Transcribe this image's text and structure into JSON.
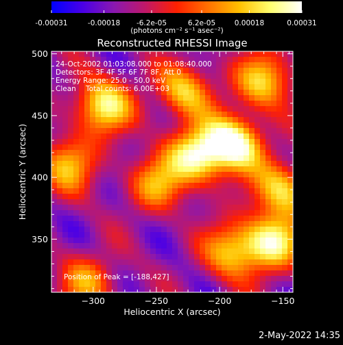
{
  "colorbar": {
    "tick_labels": [
      "-0.00031",
      "-0.00018",
      "-6.2e-05",
      "6.2e-05",
      "0.00018",
      "0.00031"
    ],
    "tick_values": [
      -0.00031,
      -0.00018,
      -6.2e-05,
      6.2e-05,
      0.00018,
      0.00031
    ],
    "range": [
      -0.00031,
      0.00031
    ],
    "units_label": "(photons cm⁻² s⁻¹ asec⁻²)",
    "colors": [
      "#0000ff",
      "#4a00e6",
      "#8a18b0",
      "#c01868",
      "#ff2000",
      "#ff7000",
      "#ffc000",
      "#ffff70",
      "#ffffff"
    ]
  },
  "chart_data": {
    "type": "heatmap",
    "title": "Reconstructed RHESSI Image",
    "xlabel": "Heliocentric X (arcsec)",
    "ylabel": "Heliocentric Y (arcsec)",
    "xlim": [
      -333,
      -142
    ],
    "ylim": [
      307,
      502
    ],
    "x_ticks": [
      -300,
      -250,
      -200,
      -150
    ],
    "y_ticks": [
      350,
      400,
      450,
      500
    ],
    "x_tick_labels": [
      "−300",
      "−250",
      "−200",
      "−150"
    ],
    "y_tick_labels": [
      "350",
      "400",
      "450",
      "500"
    ],
    "annotations": [
      "24-Oct-2002 01:03:08.000 to 01:08:40.000",
      "Detectors: 3F 4F 5F 6F 7F 8F, Att 0",
      "Energy Range: 25.0 - 50.0 keV",
      "Clean",
      "Total counts: 6.00E+03",
      "Position of Peak = [-188,427]"
    ],
    "peak_position": [
      -188,
      427
    ],
    "sources": [
      {
        "x": -188,
        "y": 427,
        "intensity": 0.00031
      },
      {
        "x": -218,
        "y": 418,
        "intensity": 0.00026
      },
      {
        "x": -292,
        "y": 458,
        "intensity": 0.00024
      },
      {
        "x": -158,
        "y": 348,
        "intensity": 0.00024
      },
      {
        "x": -165,
        "y": 478,
        "intensity": 0.00018
      },
      {
        "x": -228,
        "y": 470,
        "intensity": 0.00016
      },
      {
        "x": -150,
        "y": 390,
        "intensity": 0.00018
      },
      {
        "x": -190,
        "y": 340,
        "intensity": 0.00016
      },
      {
        "x": -320,
        "y": 410,
        "intensity": 0.00014
      },
      {
        "x": -250,
        "y": 395,
        "intensity": 0.00012
      },
      {
        "x": -305,
        "y": 315,
        "intensity": 0.0001
      }
    ]
  },
  "footer": {
    "timestamp": "2-May-2022 14:35"
  }
}
